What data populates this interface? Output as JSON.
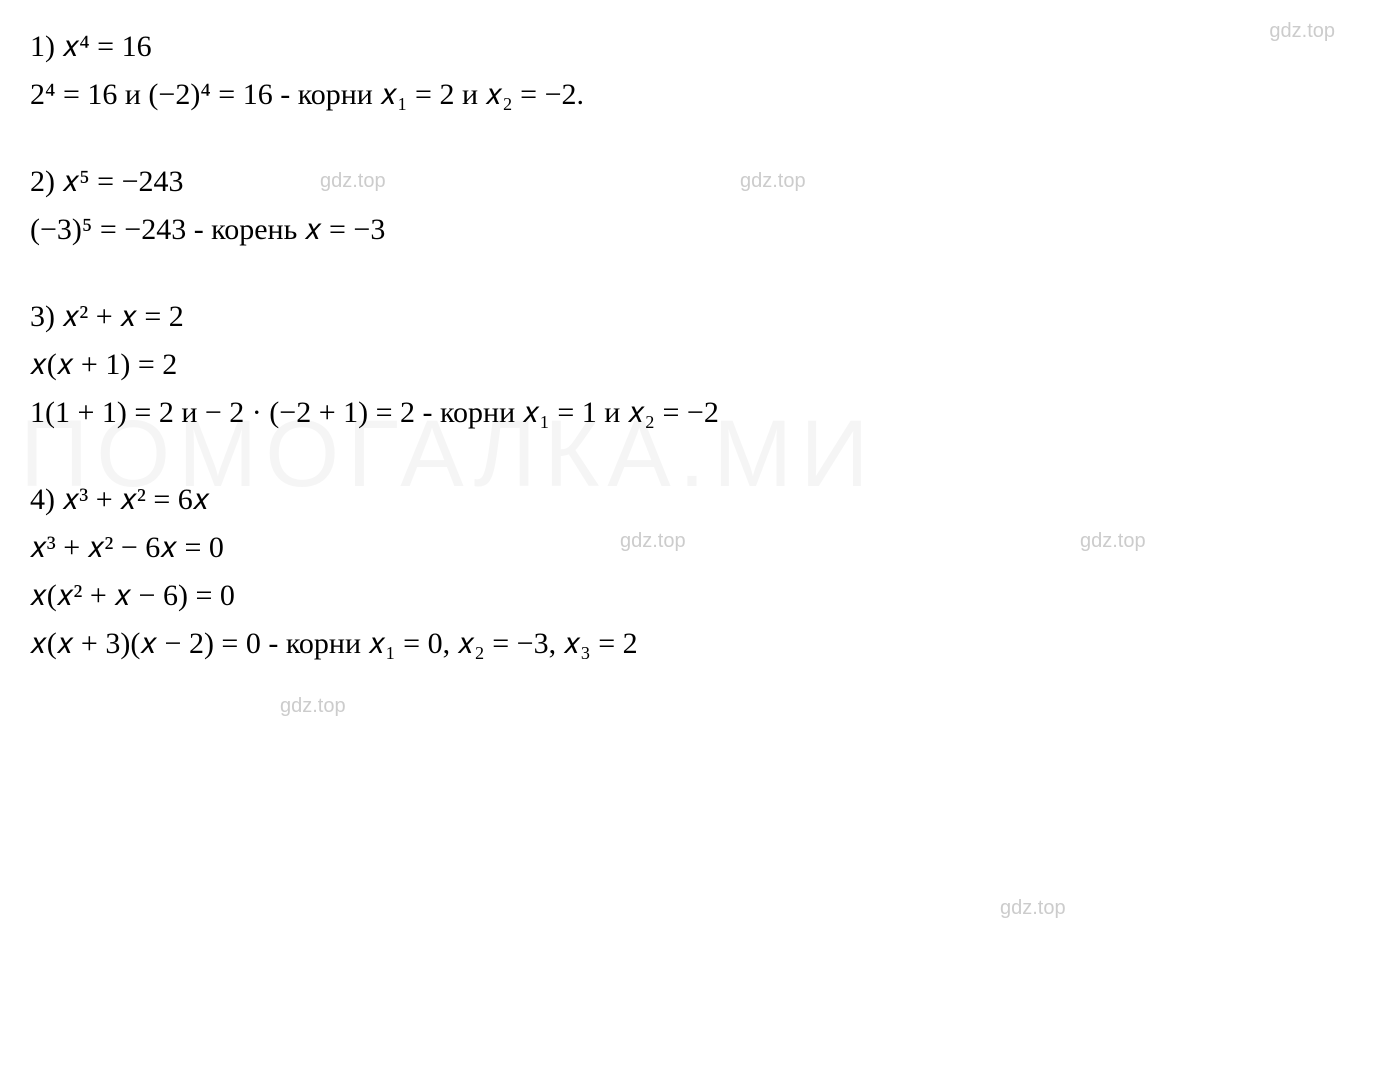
{
  "watermarks": {
    "small": "gdz.top",
    "big": "ПОМОГАЛКА.МИ"
  },
  "problems": {
    "p1": {
      "line1": "1) 𝑥⁴ = 16",
      "line2": "2⁴ = 16 и (−2)⁴ = 16 - корни 𝑥₁ = 2 и 𝑥₂ = −2."
    },
    "p2": {
      "line1": "2) 𝑥⁵ = −243",
      "line2": "(−3)⁵ = −243  - корень 𝑥 = −3"
    },
    "p3": {
      "line1": "3) 𝑥² + 𝑥 = 2",
      "line2": "𝑥(𝑥 + 1) = 2",
      "line3": "1(1 + 1) = 2 и − 2 · (−2 + 1) = 2 - корни 𝑥₁ = 1 и 𝑥₂ = −2"
    },
    "p4": {
      "line1": "4) 𝑥³ + 𝑥² = 6𝑥",
      "line2": "𝑥³ + 𝑥² − 6𝑥 = 0",
      "line3": "𝑥(𝑥² + 𝑥 − 6) = 0",
      "line4": "𝑥(𝑥 + 3)(𝑥 − 2) = 0 - корни 𝑥₁ = 0, 𝑥₂ = −3, 𝑥₃ = 2"
    }
  }
}
